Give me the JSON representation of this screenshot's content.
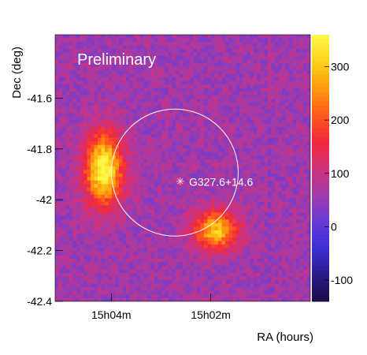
{
  "chart_data": {
    "type": "heatmap",
    "title": "",
    "xlabel": "RA (hours)",
    "ylabel": "Dec (deg)",
    "x_unit": "RA (hours)",
    "x_ticks": [
      {
        "label": "15h04m",
        "frac": 0.22
      },
      {
        "label": "15h02m",
        "frac": 0.61
      }
    ],
    "ylim": [
      -42.4,
      -41.35
    ],
    "y_ticks": [
      -41.6,
      -41.8,
      -42,
      -42.2,
      -42.4
    ],
    "y_tick_labels": [
      "-41.6",
      "-41.8",
      "-42",
      "-42.2",
      "-42.4"
    ],
    "colorbar": {
      "range": [
        -140,
        360
      ],
      "ticks": [
        300,
        200,
        100,
        0,
        -100
      ],
      "tick_labels": [
        "300",
        "200",
        "100",
        "0",
        "-100"
      ],
      "colors": [
        "#1c0b45",
        "#2a1a8a",
        "#3b2fd6",
        "#6a3ad6",
        "#a13ba8",
        "#d2307a",
        "#f0283a",
        "#ff5a1c",
        "#ff9a10",
        "#ffd21a",
        "#fff84a"
      ]
    },
    "background_level": 60,
    "hotspots": [
      {
        "name": "north-east-lobe",
        "center": {
          "ra_frac": 0.19,
          "dec": -41.88
        },
        "peak": 300
      },
      {
        "name": "south-west-lobe",
        "center": {
          "ra_frac": 0.63,
          "dec": -42.12
        },
        "peak": 240
      }
    ],
    "annotations": {
      "watermark": "Preliminary",
      "source_label": "G327.6+14.6",
      "source_position": {
        "ra_frac": 0.5,
        "dec": -41.93
      },
      "circle_radius_deg": 0.25
    }
  }
}
